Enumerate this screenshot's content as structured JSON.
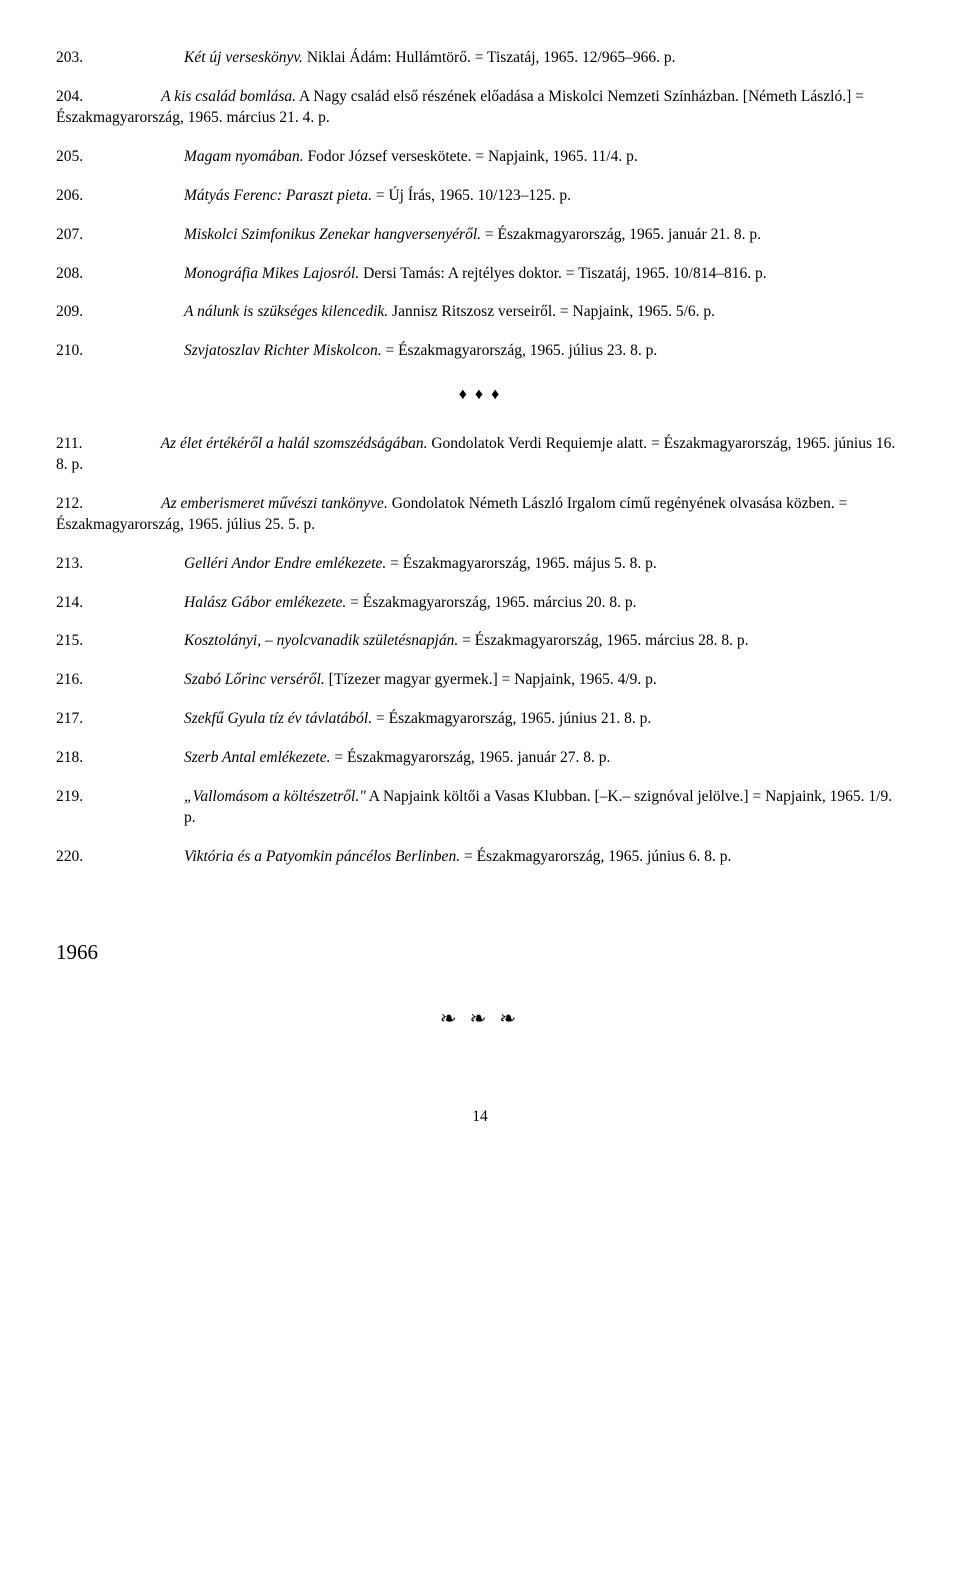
{
  "block1": [
    {
      "num": "203.",
      "html": "<span class=\"italic\">Két új verseskönyv.</span> Niklai Ádám: Hullámtörő. = Tiszatáj, 1965. 12/965–966. p."
    }
  ],
  "wrap1": {
    "num": "204.",
    "html": "<span class=\"italic\">A kis család bomlása.</span> A Nagy család első részének előadása a Miskolci Nemzeti Színházban. [Németh László.] = Északmagyarország, 1965. március 21. 4. p."
  },
  "block2": [
    {
      "num": "205.",
      "html": "<span class=\"italic\">Magam nyomában.</span> Fodor József verseskötete. = Napjaink, 1965. 11/4. p."
    },
    {
      "num": "206.",
      "html": "<span class=\"italic\">Mátyás Ferenc: Paraszt pieta.</span> = Új Írás, 1965. 10/123–125. p."
    },
    {
      "num": "207.",
      "html": "<span class=\"italic\">Miskolci Szimfonikus Zenekar hangversenyéről.</span> = Északmagyarország, 1965. január 21. 8. p."
    },
    {
      "num": "208.",
      "html": "<span class=\"italic\">Monográfia Mikes Lajosról.</span> Dersi Tamás: A rejtélyes doktor. = Tiszatáj, 1965. 10/814–816. p."
    },
    {
      "num": "209.",
      "html": "<span class=\"italic\">A nálunk is szükséges kilencedik.</span> Jannisz Ritszosz verseiről. = Napjaink, 1965. 5/6. p."
    },
    {
      "num": "210.",
      "html": "<span class=\"italic\">Szvjatoszlav Richter Miskolcon.</span> = Északmagyarország, 1965. július 23. 8. p."
    }
  ],
  "divider": "♦ ♦ ♦",
  "wrap2": {
    "num": "211.",
    "html": "<span class=\"italic\">Az élet értékéről a halál szomszédságában.</span> Gondolatok Verdi Requiemje alatt. = Északmagyarország, 1965. június 16. 8. p."
  },
  "wrap3": {
    "num": "212.",
    "html": "<span class=\"italic\">Az emberismeret művészi tankönyve.</span> Gondolatok Németh László Irgalom című regényének olvasása közben. = Északmagyarország, 1965. július 25. 5. p."
  },
  "block3": [
    {
      "num": "213.",
      "html": "<span class=\"italic\">Gelléri Andor Endre emlékezete.</span> = Északmagyarország, 1965. május 5. 8. p."
    },
    {
      "num": "214.",
      "html": "<span class=\"italic\">Halász Gábor emlékezete.</span> = Északmagyarország, 1965. március 20. 8. p."
    },
    {
      "num": "215.",
      "html": "<span class=\"italic\">Kosztolányi, – nyolcvanadik születésnapján.</span> = Északmagyarország, 1965. március 28. 8. p."
    },
    {
      "num": "216.",
      "html": "<span class=\"italic\">Szabó Lőrinc verséről.</span> [Tízezer magyar gyermek.] = Napjaink, 1965. 4/9. p."
    },
    {
      "num": "217.",
      "html": "<span class=\"italic\">Szekfű Gyula tíz év távlatából.</span> = Északmagyarország, 1965. június 21. 8. p."
    },
    {
      "num": "218.",
      "html": "<span class=\"italic\">Szerb Antal emlékezete.</span> = Északmagyarország, 1965. január 27. 8. p."
    },
    {
      "num": "219.",
      "html": "<span class=\"italic\">„Vallomásom a költészetről.\"</span> A Napjaink költői a Vasas Klubban. [–K.– szignóval jelölve.] = Napjaink, 1965. 1/9. p."
    },
    {
      "num": "220.",
      "html": "<span class=\"italic\">Viktória és a Patyomkin páncélos Berlinben.</span> = Északmagyarország, 1965. június 6. 8. p."
    }
  ],
  "year": "1966",
  "ornament": "❧ ❧ ❧",
  "pagenum": "14"
}
